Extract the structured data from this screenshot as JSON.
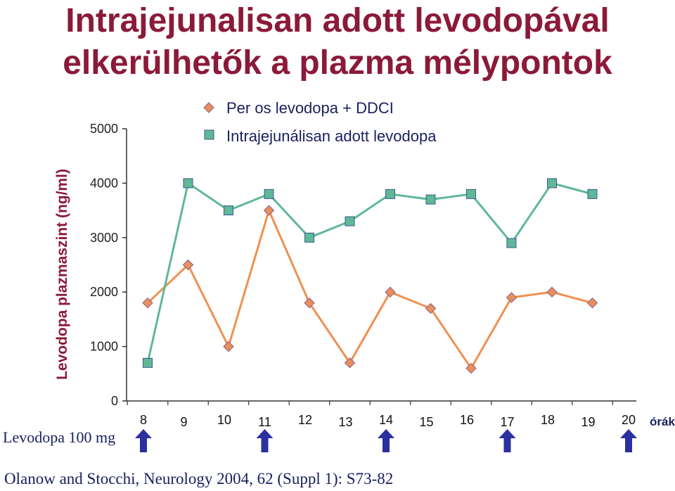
{
  "title_line1": "Intrajejunalisan adott levodopával",
  "title_line2": "elkerülhetők a plazma mélypontok",
  "citation": "Olanow and Stocchi, Neurology 2004, 62 (Suppl 1): S73-82",
  "dose_label": "Levodopa 100 mg",
  "colors": {
    "title": "#8b1a38",
    "oral": "#f09050",
    "oral_marker": "#e8905a",
    "ij": "#5fb898",
    "ij_marker": "#5fb898",
    "arrow": "#2b2fa0",
    "text_dark": "#1a1f5e"
  },
  "icons": {
    "dose_marker": "up-arrow-icon"
  },
  "chart_data": {
    "type": "line",
    "ylabel": "Levodopa plazmaszint (ng/ml)",
    "xunit": "órák",
    "ylim": [
      0,
      5000
    ],
    "yticks": [
      0,
      1000,
      2000,
      3000,
      4000,
      5000
    ],
    "x": [
      "8",
      "9",
      "10",
      "11",
      "12",
      "13",
      "14",
      "15",
      "16",
      "17",
      "18",
      "19",
      "20"
    ],
    "grid": false,
    "legend_position": "top",
    "dose_times": [
      "8",
      "11",
      "14",
      "17",
      "20"
    ],
    "series": [
      {
        "name": "Per os levodopa + DDCI",
        "marker": "diamond",
        "x": [
          "8",
          "9",
          "10",
          "11",
          "12",
          "13",
          "14",
          "15",
          "16",
          "17",
          "18",
          "19"
        ],
        "values": [
          1800,
          2500,
          1000,
          3500,
          1800,
          700,
          2000,
          1700,
          600,
          1900,
          2000,
          1800
        ]
      },
      {
        "name": "Intrajejunálisan adott levodopa",
        "marker": "square",
        "x": [
          "8",
          "9",
          "10",
          "11",
          "12",
          "13",
          "14",
          "15",
          "16",
          "17",
          "18",
          "19"
        ],
        "values": [
          700,
          4000,
          3500,
          3800,
          3000,
          3300,
          3800,
          3700,
          3800,
          2900,
          4000,
          3800
        ]
      }
    ]
  }
}
